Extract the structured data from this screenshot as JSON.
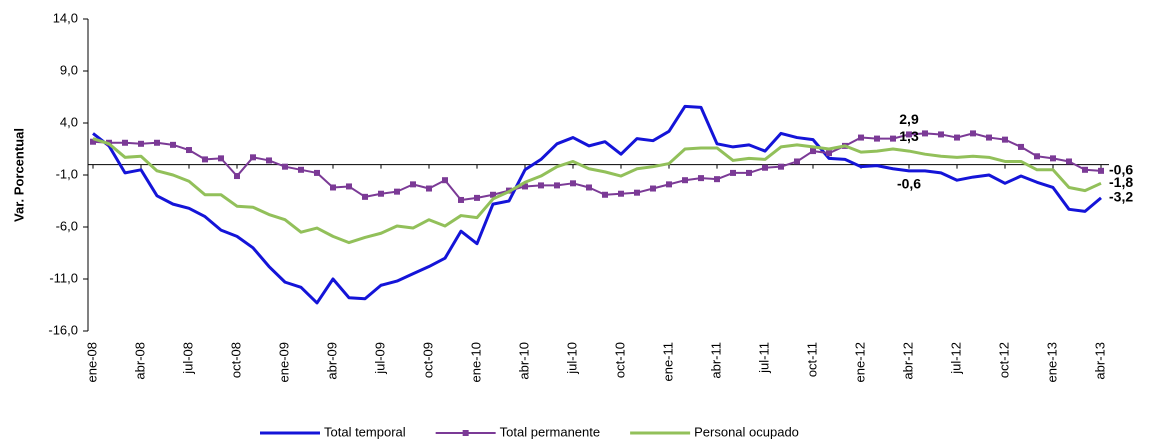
{
  "chart_data": {
    "type": "line",
    "y_label": "Var. Porcentual",
    "categories": [
      "ene-08",
      null,
      null,
      "abr-08",
      null,
      null,
      "jul-08",
      null,
      null,
      "oct-08",
      null,
      null,
      "ene-09",
      null,
      null,
      "abr-09",
      null,
      null,
      "jul-09",
      null,
      null,
      "oct-09",
      null,
      null,
      "ene-10",
      null,
      null,
      "abr-10",
      null,
      null,
      "jul-10",
      null,
      null,
      "oct-10",
      null,
      null,
      "ene-11",
      null,
      null,
      "abr-11",
      null,
      null,
      "jul-11",
      null,
      null,
      "oct-11",
      null,
      null,
      "ene-12",
      null,
      null,
      "abr-12",
      null,
      null,
      "jul-12",
      null,
      null,
      "oct-12",
      null,
      null,
      "ene-13",
      null,
      null,
      "abr-13"
    ],
    "ylim": [
      -16,
      14
    ],
    "yticks": [
      {
        "value": -16,
        "label": "-16,0"
      },
      {
        "value": -11,
        "label": "-11,0"
      },
      {
        "value": -6,
        "label": "-6,0"
      },
      {
        "value": -1,
        "label": "-1,0"
      },
      {
        "value": 4,
        "label": "4,0"
      },
      {
        "value": 9,
        "label": "9,0"
      },
      {
        "value": 14,
        "label": "14,0"
      }
    ],
    "grid": false,
    "zero_line": true,
    "series": [
      {
        "name": "Total temporal",
        "color": "#1414d8",
        "label_color": "#1a1aa8",
        "marker": "none",
        "values": [
          3.0,
          1.8,
          -0.8,
          -0.5,
          -3.0,
          -3.8,
          -4.2,
          -5.0,
          -6.3,
          -6.9,
          -8.0,
          -9.8,
          -11.3,
          -11.8,
          -13.3,
          -11.0,
          -12.8,
          -12.9,
          -11.6,
          -11.2,
          -10.5,
          -9.8,
          -9.0,
          -6.4,
          -7.6,
          -3.8,
          -3.5,
          -0.5,
          0.5,
          2.0,
          2.6,
          1.8,
          2.2,
          1.0,
          2.5,
          2.3,
          3.2,
          5.6,
          5.5,
          2.0,
          1.7,
          1.9,
          1.3,
          3.0,
          2.6,
          2.4,
          0.6,
          0.5,
          -0.2,
          -0.1,
          -0.4,
          -0.6,
          -0.6,
          -0.8,
          -1.5,
          -1.2,
          -1.0,
          -1.8,
          -1.1,
          -1.7,
          -2.2,
          -4.3,
          -4.5,
          -3.2
        ],
        "value_labels": [
          null,
          null,
          null,
          null,
          null,
          null,
          null,
          null,
          null,
          null,
          null,
          null,
          null,
          null,
          null,
          null,
          null,
          null,
          null,
          null,
          null,
          null,
          null,
          null,
          null,
          null,
          null,
          null,
          null,
          null,
          null,
          null,
          null,
          null,
          null,
          null,
          null,
          null,
          null,
          null,
          null,
          null,
          null,
          null,
          null,
          null,
          null,
          null,
          null,
          null,
          null,
          "-0,6",
          null,
          null,
          null,
          null,
          null,
          null,
          null,
          null,
          null,
          null,
          null,
          "-3,2"
        ]
      },
      {
        "name": "Total permanente",
        "color": "#7b3a96",
        "label_color": "#7b3a96",
        "marker": "square",
        "values": [
          2.2,
          2.1,
          2.1,
          2.0,
          2.1,
          1.9,
          1.4,
          0.5,
          0.6,
          -1.1,
          0.7,
          0.4,
          -0.2,
          -0.5,
          -0.8,
          -2.2,
          -2.1,
          -3.1,
          -2.8,
          -2.6,
          -1.9,
          -2.3,
          -1.5,
          -3.4,
          -3.2,
          -2.9,
          -2.5,
          -2.1,
          -2.0,
          -2.0,
          -1.8,
          -2.2,
          -2.9,
          -2.8,
          -2.7,
          -2.3,
          -1.9,
          -1.5,
          -1.3,
          -1.4,
          -0.8,
          -0.8,
          -0.3,
          -0.2,
          0.3,
          1.3,
          1.1,
          1.8,
          2.6,
          2.5,
          2.5,
          2.9,
          3.0,
          2.9,
          2.6,
          3.0,
          2.6,
          2.4,
          1.7,
          0.8,
          0.6,
          0.3,
          -0.5,
          -0.6
        ],
        "value_labels": [
          null,
          null,
          null,
          null,
          null,
          null,
          null,
          null,
          null,
          null,
          null,
          null,
          null,
          null,
          null,
          null,
          null,
          null,
          null,
          null,
          null,
          null,
          null,
          null,
          null,
          null,
          null,
          null,
          null,
          null,
          null,
          null,
          null,
          null,
          null,
          null,
          null,
          null,
          null,
          null,
          null,
          null,
          null,
          null,
          null,
          null,
          null,
          null,
          null,
          null,
          null,
          "2,9",
          null,
          null,
          null,
          null,
          null,
          null,
          null,
          null,
          null,
          null,
          null,
          "-0,6"
        ]
      },
      {
        "name": "Personal ocupado",
        "color": "#92c05a",
        "label_color": "#5f7a2e",
        "marker": "none",
        "values": [
          2.5,
          2.0,
          0.7,
          0.8,
          -0.6,
          -1.0,
          -1.6,
          -2.9,
          -2.9,
          -4.0,
          -4.1,
          -4.8,
          -5.3,
          -6.5,
          -6.1,
          -6.9,
          -7.5,
          -7.0,
          -6.6,
          -5.9,
          -6.1,
          -5.3,
          -5.9,
          -4.9,
          -5.1,
          -3.3,
          -2.6,
          -1.7,
          -1.1,
          -0.2,
          0.3,
          -0.4,
          -0.7,
          -1.1,
          -0.4,
          -0.2,
          0.1,
          1.5,
          1.6,
          1.6,
          0.4,
          0.6,
          0.5,
          1.7,
          1.9,
          1.7,
          1.5,
          1.8,
          1.2,
          1.3,
          1.5,
          1.3,
          1.0,
          0.8,
          0.7,
          0.8,
          0.7,
          0.3,
          0.3,
          -0.5,
          -0.5,
          -2.2,
          -2.5,
          -1.8
        ],
        "value_labels": [
          null,
          null,
          null,
          null,
          null,
          null,
          null,
          null,
          null,
          null,
          null,
          null,
          null,
          null,
          null,
          null,
          null,
          null,
          null,
          null,
          null,
          null,
          null,
          null,
          null,
          null,
          null,
          null,
          null,
          null,
          null,
          null,
          null,
          null,
          null,
          null,
          null,
          null,
          null,
          null,
          null,
          null,
          null,
          null,
          null,
          null,
          null,
          null,
          null,
          null,
          null,
          "1,3",
          null,
          null,
          null,
          null,
          null,
          null,
          null,
          null,
          null,
          null,
          null,
          "-1,8"
        ]
      }
    ]
  }
}
